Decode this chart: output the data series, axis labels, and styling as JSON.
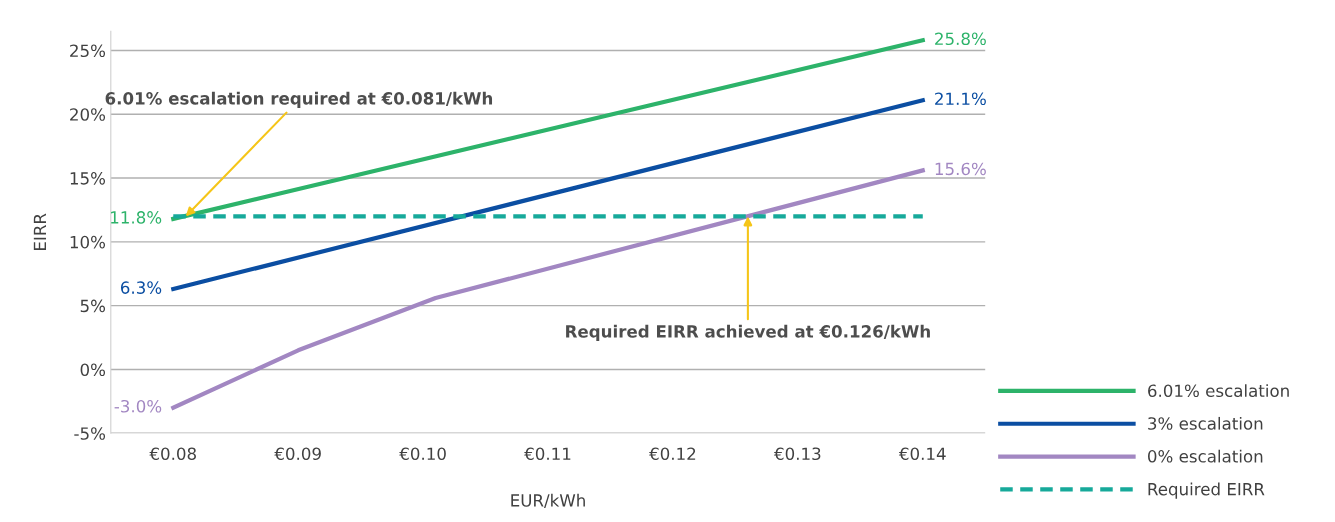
{
  "chart_data": {
    "type": "line",
    "xlabel": "EUR/kWh",
    "ylabel": "EIRR",
    "xlim": [
      0.075,
      0.145
    ],
    "xticks": [
      {
        "value": 0.08,
        "label": "€0.08"
      },
      {
        "value": 0.09,
        "label": "€0.09"
      },
      {
        "value": 0.1,
        "label": "€0.10"
      },
      {
        "value": 0.11,
        "label": "€0.11"
      },
      {
        "value": 0.12,
        "label": "€0.12"
      },
      {
        "value": 0.13,
        "label": "€0.13"
      },
      {
        "value": 0.14,
        "label": "€0.14"
      }
    ],
    "ylim": [
      -5,
      26.5
    ],
    "yticks": [
      {
        "value": -5,
        "label": "-5%"
      },
      {
        "value": 0,
        "label": "0%"
      },
      {
        "value": 5,
        "label": "5%"
      },
      {
        "value": 10,
        "label": "10%"
      },
      {
        "value": 15,
        "label": "15%"
      },
      {
        "value": 20,
        "label": "20%"
      },
      {
        "value": 25,
        "label": "25%"
      }
    ],
    "grid": "y",
    "legend": "bottom right",
    "series": [
      {
        "name": "6.01% escalation",
        "color": "#2db36a",
        "x": [
          0.08,
          0.14
        ],
        "values": [
          11.8,
          25.8
        ],
        "value_labels": [
          "11.8%",
          "25.8%"
        ]
      },
      {
        "name": "3% escalation",
        "color": "#0b4ea2",
        "x": [
          0.08,
          0.14
        ],
        "values": [
          6.3,
          21.1
        ],
        "value_labels": [
          "6.3%",
          "21.1%"
        ]
      },
      {
        "name": "0% escalation",
        "color": "#a287c2",
        "x": [
          0.08,
          0.09,
          0.101,
          0.14
        ],
        "values": [
          -3.0,
          1.5,
          5.6,
          15.6
        ],
        "value_labels": [
          "-3.0%",
          null,
          null,
          "15.6%"
        ]
      },
      {
        "name": "Required EIRR",
        "color": "#16a99a",
        "line_style": "dashed",
        "x": [
          0.08,
          0.14
        ],
        "values": [
          12,
          12
        ]
      }
    ],
    "annotations": [
      {
        "text": "6.01% escalation required at €0.081/kWh",
        "x": 0.081,
        "y": 12
      },
      {
        "text": "Required EIRR achieved at €0.126/kWh",
        "x": 0.126,
        "y": 12
      }
    ]
  }
}
